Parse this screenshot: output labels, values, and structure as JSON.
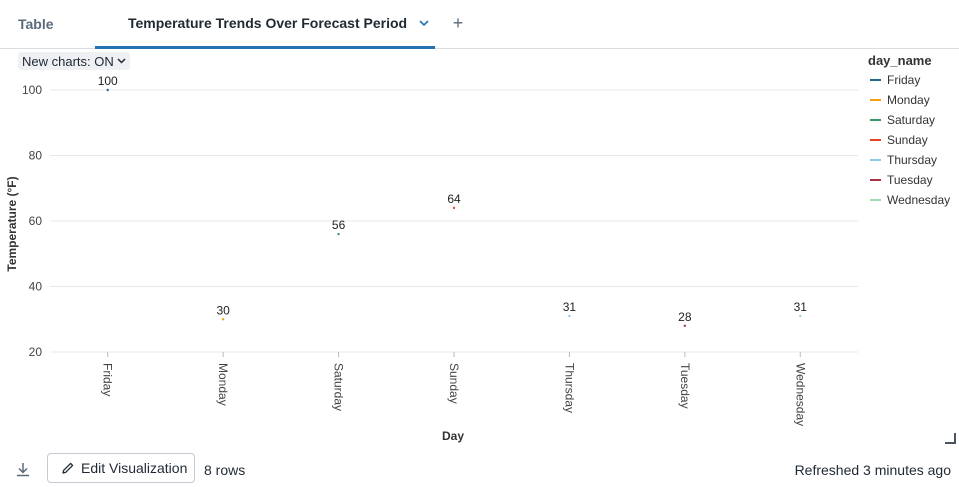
{
  "tabs": {
    "table_label": "Table",
    "active_label": "Temperature Trends Over Forecast Period",
    "add_label": "+"
  },
  "toggle": {
    "label": "New charts: ON"
  },
  "footer": {
    "edit_label": "Edit Visualization",
    "rows_label": "8 rows",
    "refreshed_label": "Refreshed 3 minutes ago"
  },
  "chart_data": {
    "type": "line",
    "xlabel": "Day",
    "ylabel": "Temperature (°F)",
    "categories": [
      "Friday",
      "Monday",
      "Saturday",
      "Sunday",
      "Thursday",
      "Tuesday",
      "Wednesday"
    ],
    "yticks": [
      "20",
      "40",
      "60",
      "80",
      "100"
    ],
    "ylim": [
      20,
      100
    ],
    "grid": true,
    "legend_title": "day_name",
    "legend_placement": "right",
    "series": [
      {
        "name": "Friday",
        "color": "#1f6a8a",
        "x": "Friday",
        "value": 100
      },
      {
        "name": "Monday",
        "color": "#f2a20e",
        "x": "Monday",
        "value": 30
      },
      {
        "name": "Saturday",
        "color": "#3a9a6a",
        "x": "Saturday",
        "value": 56
      },
      {
        "name": "Sunday",
        "color": "#e8412a",
        "x": "Sunday",
        "value": 64
      },
      {
        "name": "Thursday",
        "color": "#8ccbe8",
        "x": "Thursday",
        "value": 31
      },
      {
        "name": "Tuesday",
        "color": "#a8324a",
        "x": "Tuesday",
        "value": 28
      },
      {
        "name": "Wednesday",
        "color": "#9fdcb4",
        "x": "Wednesday",
        "value": 31
      }
    ]
  }
}
